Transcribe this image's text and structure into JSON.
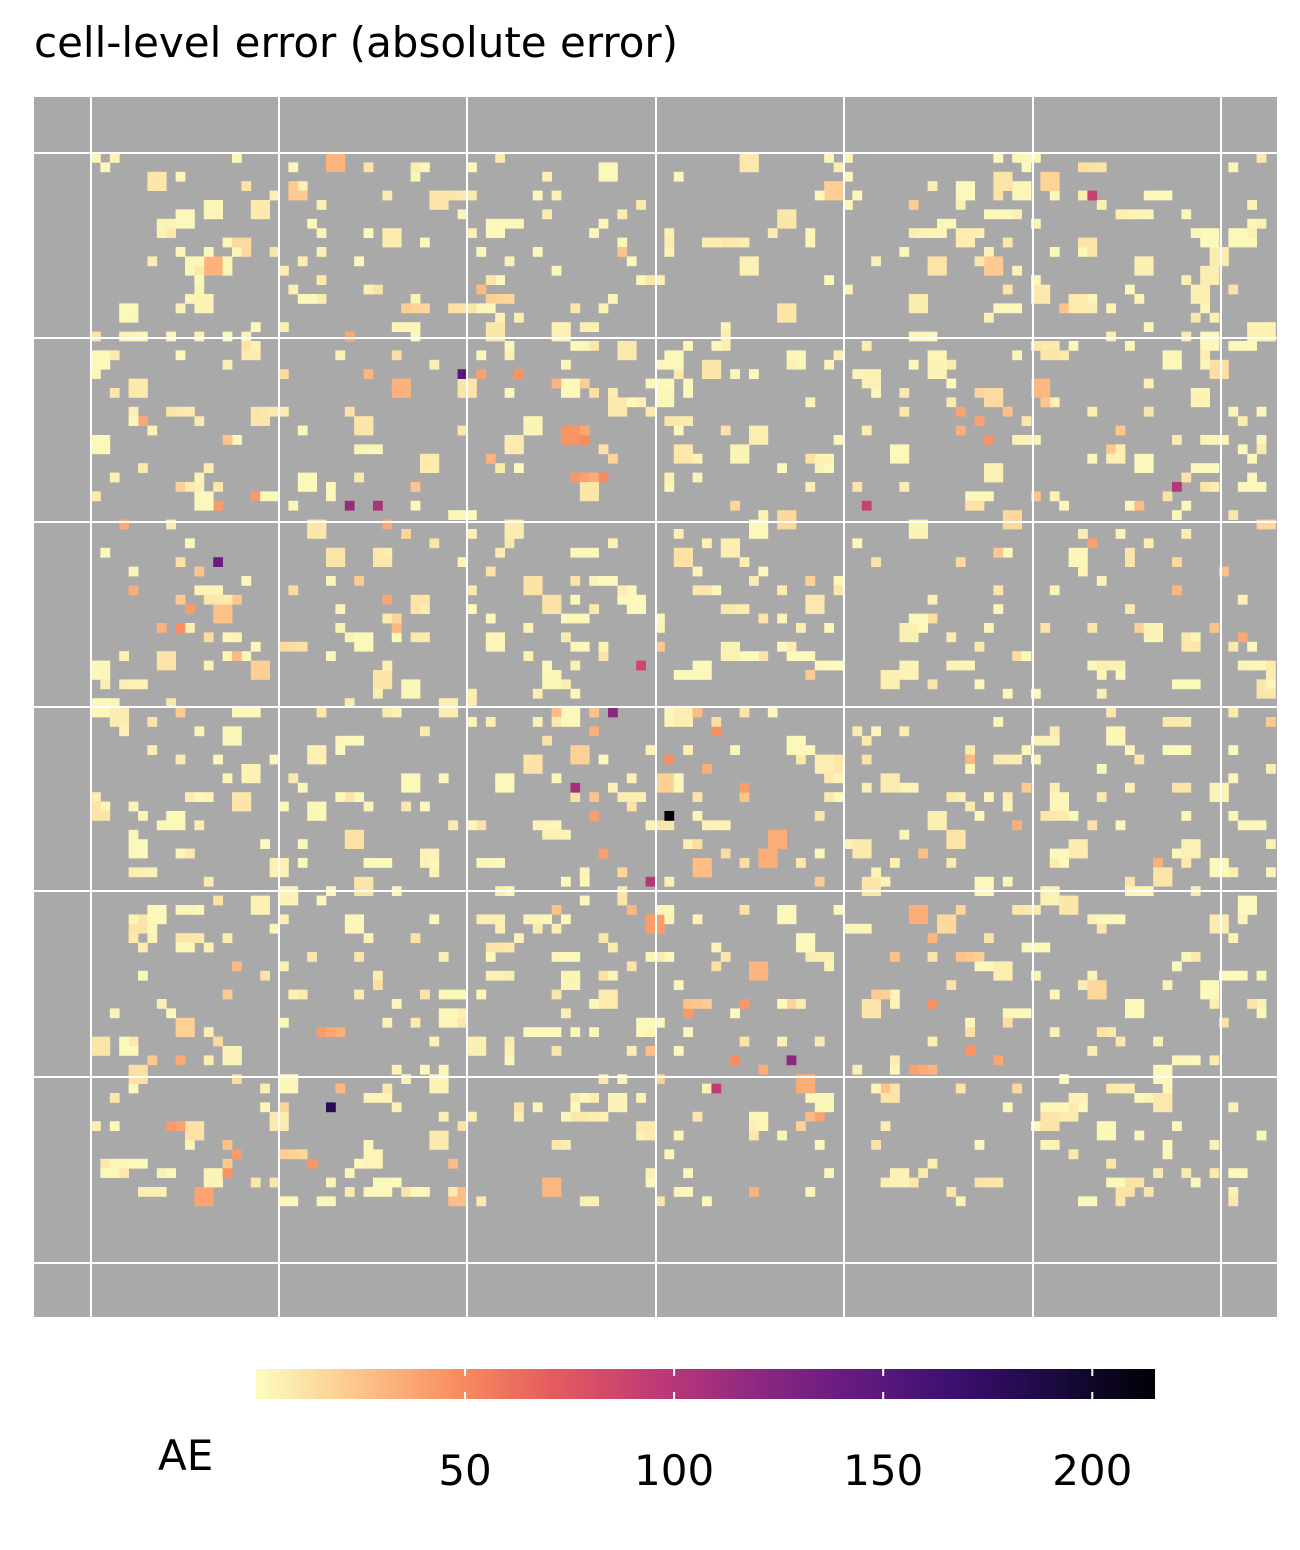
{
  "chart_data": {
    "type": "heatmap",
    "title": "cell-level error (absolute error)",
    "panel_color": "#a9a9a9",
    "grid_color": "#ffffff",
    "colorscale": "magma-reversed",
    "colorscale_stops": [
      "#fcfdbf",
      "#fdc68c",
      "#f98e5f",
      "#e35a5e",
      "#c03a76",
      "#8c2981",
      "#641a80",
      "#3b0f70",
      "#1a0a3f",
      "#000004"
    ],
    "legend": {
      "title": "AE",
      "placement": "bottom",
      "range": [
        0,
        215
      ],
      "ticks": [
        50,
        100,
        150,
        200
      ],
      "tick_labels": [
        "50",
        "100",
        "150",
        "200"
      ]
    },
    "grid": {
      "cols": 126,
      "rows": 112,
      "n_cells": 1300,
      "seed": 20240517
    },
    "hotspots": [
      {
        "col": 61,
        "row": 70,
        "value": 215
      },
      {
        "col": 25,
        "row": 101,
        "value": 180
      },
      {
        "col": 39,
        "row": 23,
        "value": 150
      },
      {
        "col": 13,
        "row": 43,
        "value": 140
      },
      {
        "col": 55,
        "row": 59,
        "value": 120
      },
      {
        "col": 27,
        "row": 37,
        "value": 115
      },
      {
        "col": 74,
        "row": 96,
        "value": 120
      },
      {
        "col": 51,
        "row": 67,
        "value": 110
      },
      {
        "col": 30,
        "row": 37,
        "value": 105
      },
      {
        "col": 115,
        "row": 35,
        "value": 100
      },
      {
        "col": 59,
        "row": 77,
        "value": 100
      },
      {
        "col": 66,
        "row": 99,
        "value": 95
      },
      {
        "col": 82,
        "row": 37,
        "value": 90
      },
      {
        "col": 58,
        "row": 54,
        "value": 85
      },
      {
        "col": 106,
        "row": 4,
        "value": 90
      }
    ]
  }
}
